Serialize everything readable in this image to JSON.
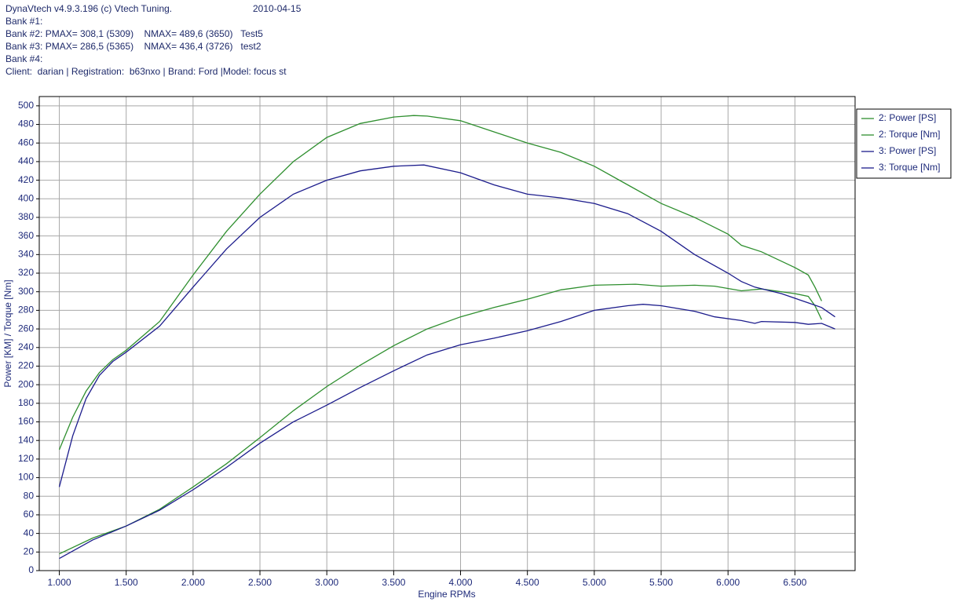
{
  "chart_data": {
    "type": "line",
    "annotations": [
      "DynaVtech v4.9.3.196 (c) Vtech Tuning.",
      "2010-04-15",
      "Bank #1:",
      "Bank #2: PMAX= 308,1 (5309)    NMAX= 489,6 (3650)   Test5",
      "Bank #3: PMAX= 286,5 (5365)    NMAX= 436,4 (3726)   test2",
      "Bank #4:",
      "Client:  darian | Registration:  b63nxo | Brand: Ford |Model: focus st"
    ],
    "xlabel": "Engine RPMs",
    "ylabel": "Power [KM] / Torque [Nm]",
    "xlim": [
      850,
      6950
    ],
    "ylim": [
      0,
      510
    ],
    "xticks": [
      {
        "value": 1000,
        "label": "1.000"
      },
      {
        "value": 1500,
        "label": "1.500"
      },
      {
        "value": 2000,
        "label": "2.000"
      },
      {
        "value": 2500,
        "label": "2.500"
      },
      {
        "value": 3000,
        "label": "3.000"
      },
      {
        "value": 3500,
        "label": "3.500"
      },
      {
        "value": 4000,
        "label": "4.000"
      },
      {
        "value": 4500,
        "label": "4.500"
      },
      {
        "value": 5000,
        "label": "5.000"
      },
      {
        "value": 5500,
        "label": "5.500"
      },
      {
        "value": 6000,
        "label": "6.000"
      },
      {
        "value": 6500,
        "label": "6.500"
      }
    ],
    "yticks": [
      0,
      20,
      40,
      60,
      80,
      100,
      120,
      140,
      160,
      180,
      200,
      220,
      240,
      260,
      280,
      300,
      320,
      340,
      360,
      380,
      400,
      420,
      440,
      460,
      480,
      500
    ],
    "grid": true,
    "legend": "right",
    "series": [
      {
        "name": "2: Power [PS]",
        "color": "#2f8f2f",
        "x": [
          1000,
          1250,
          1500,
          1750,
          2000,
          2250,
          2500,
          2750,
          3000,
          3250,
          3500,
          3750,
          4000,
          4250,
          4500,
          4750,
          5000,
          5309,
          5500,
          5750,
          5900,
          6100,
          6250,
          6500,
          6600,
          6650,
          6700
        ],
        "values": [
          18,
          35,
          48,
          66,
          90,
          115,
          143,
          172,
          198,
          221,
          242,
          260,
          273,
          283,
          292,
          302,
          307,
          308.1,
          306,
          307,
          306,
          301,
          303,
          298,
          295,
          285,
          270
        ]
      },
      {
        "name": "2: Torque [Nm]",
        "color": "#2f8f2f",
        "x": [
          1000,
          1100,
          1200,
          1300,
          1400,
          1500,
          1750,
          2000,
          2250,
          2500,
          2750,
          3000,
          3250,
          3500,
          3650,
          3750,
          4000,
          4250,
          4500,
          4750,
          5000,
          5250,
          5500,
          5750,
          6000,
          6100,
          6250,
          6500,
          6600,
          6650,
          6700
        ],
        "values": [
          130,
          165,
          193,
          213,
          227,
          237,
          268,
          318,
          365,
          405,
          440,
          466,
          481,
          488,
          489.6,
          489,
          484,
          472,
          460,
          450,
          435,
          415,
          395,
          380,
          362,
          350,
          343,
          326,
          318,
          305,
          290
        ]
      },
      {
        "name": "3: Power [PS]",
        "color": "#1c1c8c",
        "x": [
          1000,
          1250,
          1500,
          1750,
          2000,
          2250,
          2500,
          2750,
          3000,
          3250,
          3500,
          3750,
          4000,
          4250,
          4500,
          4750,
          5000,
          5250,
          5365,
          5500,
          5750,
          5900,
          6100,
          6200,
          6250,
          6500,
          6600,
          6700,
          6800
        ],
        "values": [
          13,
          33,
          48,
          65,
          87,
          111,
          137,
          160,
          178,
          197,
          215,
          232,
          243,
          250,
          258,
          268,
          280,
          285,
          286.5,
          285,
          279,
          273,
          269,
          266,
          268,
          267,
          265,
          266,
          260
        ]
      },
      {
        "name": "3: Torque [Nm]",
        "color": "#1c1c8c",
        "x": [
          1000,
          1100,
          1200,
          1300,
          1400,
          1500,
          1750,
          2000,
          2250,
          2500,
          2750,
          3000,
          3250,
          3500,
          3726,
          4000,
          4250,
          4500,
          4750,
          5000,
          5250,
          5500,
          5750,
          6000,
          6100,
          6200,
          6400,
          6600,
          6700,
          6800
        ],
        "values": [
          90,
          145,
          185,
          210,
          225,
          235,
          263,
          305,
          346,
          380,
          405,
          420,
          430,
          435,
          436.4,
          428,
          415,
          405,
          401,
          395,
          384,
          365,
          340,
          320,
          311,
          305,
          298,
          288,
          283,
          273
        ]
      }
    ]
  }
}
